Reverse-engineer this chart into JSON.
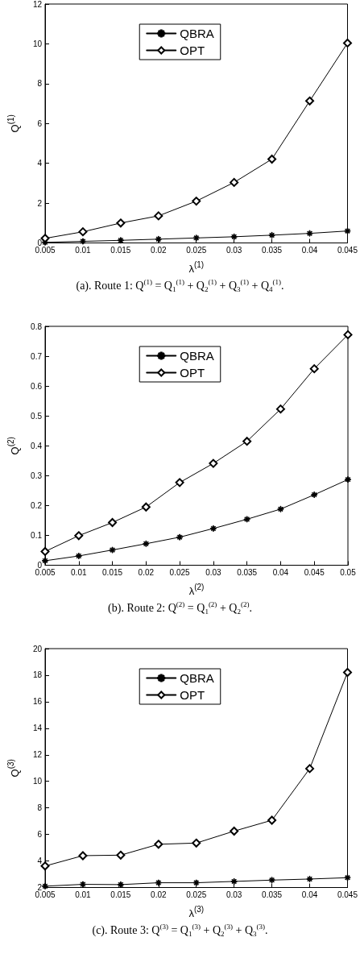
{
  "chart_data": [
    {
      "type": "line",
      "xlabel": "λ$^{(1)}$",
      "ylabel": "Q$^{(1)}$",
      "annotations": [
        "(a). Route 1: Q$^{(1)}$ = Q$_{1}$$^{(1)}$ + Q$_{2}$$^{(1)}$ + Q$_{3}$$^{(1)}$ + Q$_{4}$$^{(1)}$."
      ],
      "x": [
        0.005,
        0.01,
        0.015,
        0.02,
        0.025,
        0.03,
        0.035,
        0.04,
        0.045
      ],
      "series": [
        {
          "name": "QBRA",
          "color": "#000000",
          "marker": "cross",
          "values": [
            0.03,
            0.08,
            0.13,
            0.19,
            0.25,
            0.31,
            0.39,
            0.48,
            0.6
          ]
        },
        {
          "name": "OPT",
          "color": "#000000",
          "marker": "diamond",
          "values": [
            0.23,
            0.56,
            1.0,
            1.36,
            2.1,
            3.04,
            4.21,
            7.13,
            10.04
          ]
        }
      ],
      "xlim": [
        0.005,
        0.045
      ],
      "xticks": [
        0.005,
        0.01,
        0.015,
        0.02,
        0.025,
        0.03,
        0.035,
        0.04,
        0.045
      ],
      "ylim": [
        0,
        12
      ],
      "yticks": [
        0,
        2,
        4,
        6,
        8,
        10,
        12
      ],
      "legend": "top"
    },
    {
      "type": "line",
      "xlabel": "λ$^{(2)}$",
      "ylabel": "Q$^{(2)}$",
      "annotations": [
        "(b). Route 2: Q$^{(2)}$ = Q$_{1}$$^{(2)}$ + Q$_{2}$$^{(2)}$."
      ],
      "x": [
        0.005,
        0.01,
        0.015,
        0.02,
        0.025,
        0.03,
        0.035,
        0.04,
        0.045,
        0.05
      ],
      "series": [
        {
          "name": "QBRA",
          "color": "#000000",
          "marker": "cross",
          "values": [
            0.015,
            0.031,
            0.051,
            0.072,
            0.094,
            0.123,
            0.154,
            0.188,
            0.236,
            0.287
          ]
        },
        {
          "name": "OPT",
          "color": "#000000",
          "marker": "diamond",
          "values": [
            0.046,
            0.099,
            0.143,
            0.195,
            0.277,
            0.341,
            0.415,
            0.523,
            0.658,
            0.772
          ]
        }
      ],
      "xlim": [
        0.005,
        0.05
      ],
      "xticks": [
        0.005,
        0.01,
        0.015,
        0.02,
        0.025,
        0.03,
        0.035,
        0.04,
        0.045,
        0.05
      ],
      "ylim": [
        0,
        0.8
      ],
      "yticks": [
        0,
        0.1,
        0.2,
        0.3,
        0.4,
        0.5,
        0.6,
        0.7,
        0.8
      ],
      "legend": "top"
    },
    {
      "type": "line",
      "xlabel": "λ$^{(3)}$",
      "ylabel": "Q$^{(3)}$",
      "annotations": [
        "(c). Route 3: Q$^{(3)}$ = Q$_{1}$$^{(3)}$ + Q$_{2}$$^{(3)}$ + Q$_{3}$$^{(3)}$."
      ],
      "x": [
        0.005,
        0.01,
        0.015,
        0.02,
        0.025,
        0.03,
        0.035,
        0.04,
        0.045
      ],
      "series": [
        {
          "name": "QBRA",
          "color": "#000000",
          "marker": "cross",
          "values": [
            2.1,
            2.24,
            2.22,
            2.36,
            2.36,
            2.46,
            2.56,
            2.64,
            2.74
          ]
        },
        {
          "name": "OPT",
          "color": "#000000",
          "marker": "diamond",
          "values": [
            3.62,
            4.4,
            4.44,
            5.26,
            5.35,
            6.25,
            7.07,
            10.96,
            18.21
          ]
        }
      ],
      "xlim": [
        0.005,
        0.045
      ],
      "xticks": [
        0.005,
        0.01,
        0.015,
        0.02,
        0.025,
        0.03,
        0.035,
        0.04,
        0.045
      ],
      "ylim": [
        2,
        20
      ],
      "yticks": [
        2,
        4,
        6,
        8,
        10,
        12,
        14,
        16,
        18,
        20
      ],
      "legend": "top"
    }
  ]
}
